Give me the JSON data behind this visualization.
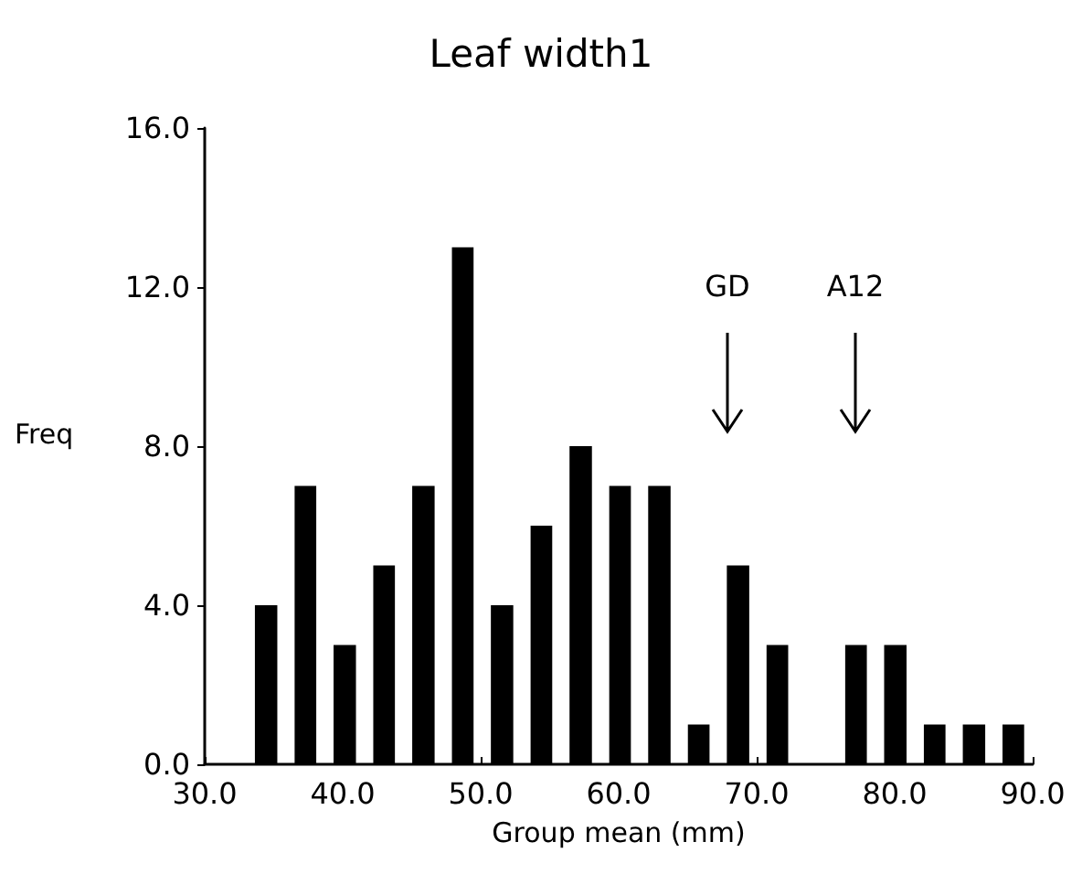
{
  "chart_data": {
    "type": "histogram",
    "title": "Leaf width1",
    "xlabel": "Group mean (mm)",
    "ylabel": "Freq",
    "bins": [
      33.0,
      35.9,
      38.7,
      41.6,
      44.4,
      47.3,
      50.1,
      53.0,
      55.8,
      58.7,
      61.5,
      64.4,
      67.2,
      70.1,
      72.9,
      75.8,
      78.6,
      81.5,
      84.3,
      87.2,
      90.0
    ],
    "values": [
      4,
      7,
      3,
      5,
      7,
      13,
      4,
      6,
      8,
      7,
      7,
      1,
      5,
      3,
      0,
      3,
      3,
      1,
      1,
      1
    ],
    "color": "#000000",
    "xlim": [
      30,
      90
    ],
    "xticks": [
      {
        "value": 30,
        "label": "30.0"
      },
      {
        "value": 40,
        "label": "40.0"
      },
      {
        "value": 50,
        "label": "50.0"
      },
      {
        "value": 60,
        "label": "60.0"
      },
      {
        "value": 70,
        "label": "70.0"
      },
      {
        "value": 80,
        "label": "80.0"
      },
      {
        "value": 90,
        "label": "90.0"
      }
    ],
    "ylim": [
      0,
      16
    ],
    "yticks": [
      {
        "value": 0,
        "label": "0.0"
      },
      {
        "value": 4,
        "label": "4.0"
      },
      {
        "value": 8,
        "label": "8.0"
      },
      {
        "value": 12,
        "label": "12.0"
      },
      {
        "value": 16,
        "label": "16.0"
      }
    ],
    "annotations": [
      "GD",
      "A12"
    ],
    "grid": false
  }
}
